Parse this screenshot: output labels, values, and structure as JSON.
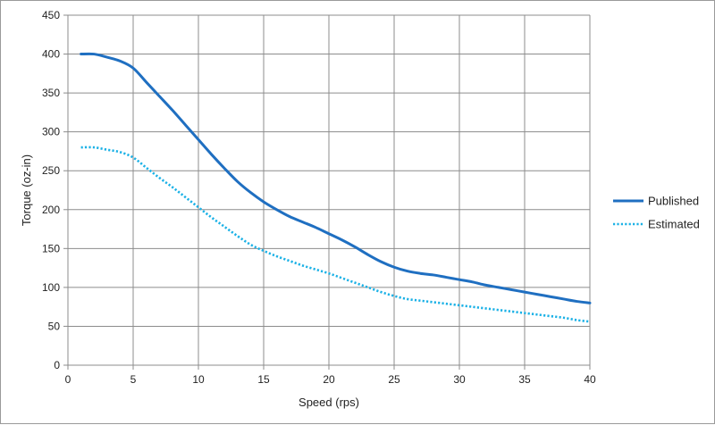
{
  "chart_data": {
    "type": "line",
    "title": "",
    "xlabel": "Speed (rps)",
    "ylabel": "Torque (oz-in)",
    "xlim": [
      0,
      40
    ],
    "ylim": [
      0,
      450
    ],
    "x_ticks": [
      0,
      5,
      10,
      15,
      20,
      25,
      30,
      35,
      40
    ],
    "y_ticks": [
      0,
      50,
      100,
      150,
      200,
      250,
      300,
      350,
      400,
      450
    ],
    "grid": true,
    "legend_position": "right",
    "series": [
      {
        "name": "Published",
        "color": "#1f6fc1",
        "style": "solid",
        "x": [
          1,
          2,
          3,
          4,
          5,
          6,
          7,
          8,
          9,
          10,
          11,
          12,
          13,
          14,
          15,
          16,
          17,
          18,
          19,
          20,
          21,
          22,
          23,
          24,
          25,
          26,
          27,
          28,
          29,
          30,
          31,
          32,
          33,
          34,
          35,
          36,
          37,
          38,
          39,
          40
        ],
        "values": [
          400,
          400,
          396,
          391,
          382,
          364,
          346,
          328,
          309,
          290,
          271,
          253,
          236,
          222,
          210,
          200,
          191,
          184,
          177,
          169,
          161,
          152,
          142,
          133,
          126,
          121,
          118,
          116,
          113,
          110,
          107,
          103,
          100,
          97,
          94,
          91,
          88,
          85,
          82,
          80
        ]
      },
      {
        "name": "Estimated",
        "color": "#1bb1e6",
        "style": "dotted",
        "x": [
          1,
          2,
          3,
          4,
          5,
          6,
          7,
          8,
          9,
          10,
          11,
          12,
          13,
          14,
          15,
          16,
          17,
          18,
          19,
          20,
          21,
          22,
          23,
          24,
          25,
          26,
          27,
          28,
          29,
          30,
          31,
          32,
          33,
          34,
          35,
          36,
          37,
          38,
          39,
          40
        ],
        "values": [
          280,
          280,
          277,
          274,
          267,
          254,
          241,
          229,
          216,
          203,
          190,
          178,
          166,
          155,
          147,
          140,
          134,
          128,
          123,
          118,
          112,
          106,
          100,
          94,
          89,
          85,
          83,
          81,
          79,
          77,
          75,
          73,
          71,
          69,
          67,
          65,
          63,
          61,
          58,
          56
        ]
      }
    ]
  }
}
